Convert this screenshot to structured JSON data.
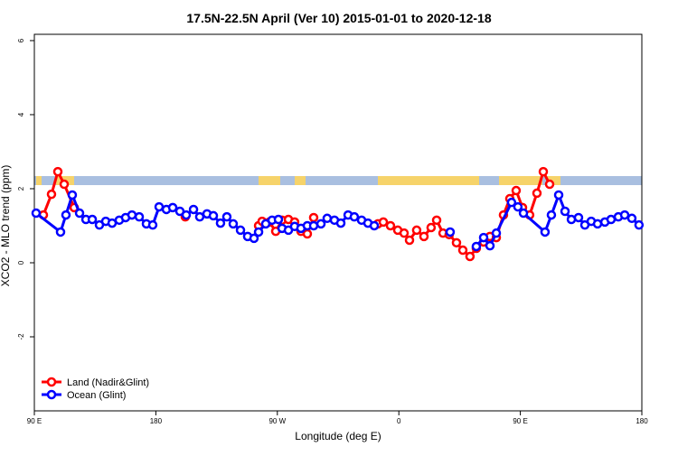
{
  "chart_data": {
    "type": "line",
    "title": "17.5N-22.5N April (Ver 10)   2015-01-01 to 2020-12-18",
    "x_label": "Longitude (deg E)",
    "y_label": "XCO2 - MLO trend (ppm)",
    "xlim": [
      90,
      540
    ],
    "xticks": [
      {
        "value": 90,
        "label": "90 E"
      },
      180,
      {
        "value": 270,
        "label": "90 W"
      },
      {
        "value": 360,
        "label": "0"
      },
      {
        "value": 450,
        "label": "90 E"
      },
      {
        "value": 540,
        "label": "180"
      }
    ],
    "ylim": [
      -4,
      6.17
    ],
    "yticks": [
      -2,
      0,
      2,
      4,
      6
    ],
    "legend": "bottom-left",
    "series": [
      {
        "name": "Land (Nadir&Glint)",
        "color": "#ff0000",
        "x": [
          96.7,
          102.7,
          107.4,
          112.1,
          119.5,
          null,
          201.8,
          null,
          256.1,
          258.7,
          264.1,
          268.8,
          273.5,
          278.2,
          282.8,
          287.5,
          292.2,
          296.9,
          null,
          344.5,
          348.5,
          353.8,
          359.2,
          363.9,
          367.9,
          373.2,
          378.6,
          383.9,
          388.0,
          392.7,
          397.3,
          402.7,
          407.4,
          412.7,
          417.4,
          422.8,
          427.5,
          432.2,
          437.5,
          442.2,
          446.9,
          451.6,
          456.9,
          462.3,
          467.0,
          471.7
        ],
        "values": [
          1.29,
          1.85,
          2.46,
          2.12,
          1.49,
          null,
          1.24,
          null,
          1.0,
          1.12,
          1.1,
          0.85,
          1.15,
          1.17,
          1.1,
          0.85,
          0.78,
          1.22,
          null,
          1.05,
          1.1,
          1.0,
          0.88,
          0.8,
          0.61,
          0.88,
          0.71,
          0.95,
          1.15,
          0.8,
          0.76,
          0.54,
          0.34,
          0.17,
          0.39,
          0.56,
          0.71,
          0.68,
          1.29,
          1.73,
          1.95,
          1.49,
          1.29,
          1.88,
          2.46,
          2.12
        ]
      },
      {
        "name": "Ocean (Glint)",
        "color": "#0000ff",
        "x": [
          91.3,
          109.4,
          113.4,
          118.1,
          123.5,
          128.2,
          132.9,
          138.2,
          142.9,
          147.6,
          152.9,
          157.6,
          162.3,
          167.7,
          173.0,
          177.7,
          182.4,
          187.8,
          192.5,
          197.8,
          202.5,
          207.9,
          212.5,
          217.9,
          222.6,
          227.9,
          232.6,
          237.3,
          242.7,
          248.0,
          252.7,
          256.1,
          261.4,
          266.1,
          270.8,
          273.5,
          278.2,
          282.8,
          287.5,
          292.2,
          296.9,
          302.3,
          306.9,
          312.3,
          317.0,
          322.4,
          327.0,
          332.4,
          337.1,
          341.8,
          null,
          398.0,
          null,
          417.4,
          422.8,
          427.5,
          432.2,
          443.5,
          448.2,
          452.3,
          468.3,
          473.0,
          478.4,
          483.1,
          487.8,
          493.1,
          497.8,
          502.5,
          507.2,
          512.6,
          517.2,
          522.6,
          527.3,
          532.6,
          537.9
        ],
        "values": [
          1.34,
          0.83,
          1.29,
          1.83,
          1.34,
          1.17,
          1.17,
          1.02,
          1.12,
          1.07,
          1.15,
          1.22,
          1.29,
          1.24,
          1.05,
          1.02,
          1.51,
          1.44,
          1.49,
          1.39,
          1.29,
          1.44,
          1.24,
          1.32,
          1.27,
          1.07,
          1.24,
          1.05,
          0.88,
          0.71,
          0.66,
          0.83,
          1.05,
          1.15,
          1.17,
          0.93,
          0.88,
          0.98,
          0.93,
          1.0,
          1.0,
          1.05,
          1.2,
          1.15,
          1.07,
          1.29,
          1.24,
          1.15,
          1.07,
          1.0,
          null,
          0.83,
          null,
          0.44,
          0.68,
          0.46,
          0.8,
          1.63,
          1.51,
          1.34,
          0.83,
          1.29,
          1.83,
          1.39,
          1.17,
          1.22,
          1.02,
          1.12,
          1.05,
          1.1,
          1.17,
          1.24,
          1.29,
          1.2,
          1.02
        ]
      }
    ]
  }
}
